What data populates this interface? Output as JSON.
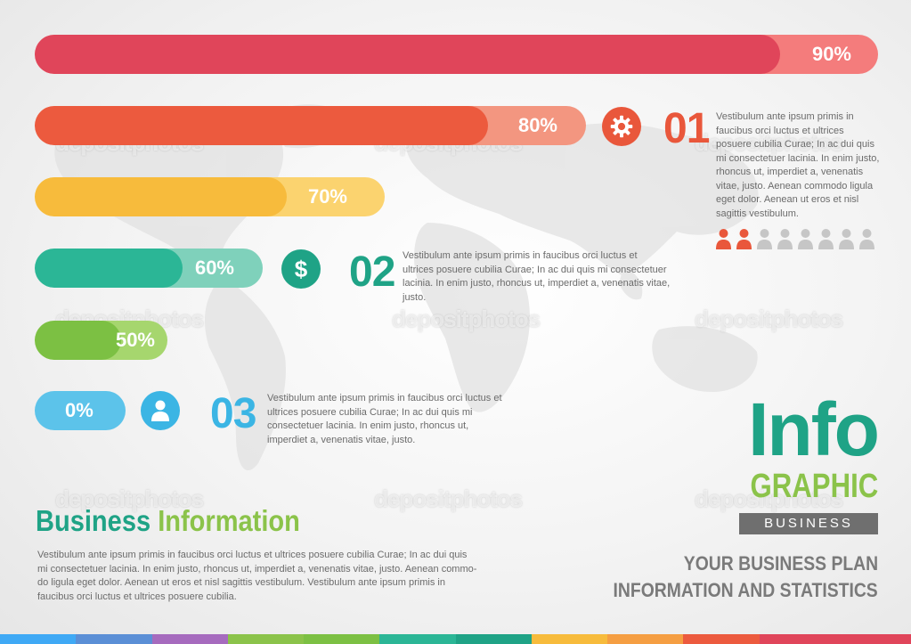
{
  "bars": [
    {
      "value": 90,
      "label": "90%",
      "track": "#f47c7c",
      "fill": "#e0455a"
    },
    {
      "value": 80,
      "label": "80%",
      "track": "#f39680",
      "fill": "#ec5a3e"
    },
    {
      "value": 70,
      "label": "70%",
      "track": "#fbd36f",
      "fill": "#f7bb3c"
    },
    {
      "value": 60,
      "label": "60%",
      "track": "#7fd1bb",
      "fill": "#2bb696"
    },
    {
      "value": 50,
      "label": "50%",
      "track": "#a6d66e",
      "fill": "#7cc043"
    },
    {
      "value": 0,
      "label": "0%",
      "track": "#5cc3ea",
      "fill": "#5cc3ea"
    }
  ],
  "items": [
    {
      "number": "01",
      "color": "#e9573b",
      "icon": "gear-icon",
      "text_lines": [
        "Vestibulum ante ipsum primis in",
        "faucibus orci luctus et ultrices",
        "posuere cubilia Curae; In ac dui quis",
        "mi consectetuer lacinia. In enim justo,",
        "rhoncus ut, imperdiet a, venenatis",
        "vitae, justo. Aenean commodo ligula",
        "eget dolor. Aenean ut eros et nisl",
        "sagittis vestibulum."
      ]
    },
    {
      "number": "02",
      "color": "#1fa386",
      "icon": "dollar-icon",
      "icon_glyph": "$",
      "text_lines": [
        "Vestibulum ante ipsum primis in faucibus orci luctus et",
        "ultrices posuere cubilia Curae; In ac dui quis mi consectetuer",
        "lacinia. In enim justo, rhoncus ut, imperdiet a, venenatis vitae,",
        "justo."
      ]
    },
    {
      "number": "03",
      "color": "#3bb5e4",
      "icon": "person-icon",
      "text_lines": [
        "Vestibulum ante ipsum primis in faucibus orci luctus et",
        "ultrices posuere cubilia Curae; In ac dui quis mi",
        "consectetuer lacinia. In enim justo, rhoncus ut,",
        "imperdiet a, venenatis vitae, justo."
      ]
    }
  ],
  "people": {
    "total": 8,
    "highlighted": 2,
    "highlight_color": "#e9573b",
    "base_color": "#c6c6c6"
  },
  "title": {
    "word1": "Business",
    "word2": "Information",
    "color1": "#1fa386",
    "color2": "#8bc34a"
  },
  "description_lines": [
    "Vestibulum ante ipsum primis in faucibus orci luctus et ultrices posuere cubilia Curae; In ac dui quis",
    "mi consectetuer lacinia. In enim justo, rhoncus ut, imperdiet a, venenatis vitae, justo. Aenean commo-",
    "do ligula eget dolor. Aenean ut eros et nisl sagittis vestibulum. Vestibulum ante ipsum primis in",
    "faucibus orci luctus et ultrices posuere cubilia."
  ],
  "brand": {
    "info": "Info",
    "graphic": "GRAPHIC",
    "business": "BUSINESS",
    "plan_line1": "YOUR BUSINESS PLAN",
    "plan_line2": "INFORMATION AND STATISTICS"
  },
  "watermark": "depositphotos",
  "stripe_colors": [
    "#3fa9f5",
    "#5b8fd6",
    "#a66bbe",
    "#8bc34a",
    "#7cc043",
    "#2bb696",
    "#1fa386",
    "#f7bb3c",
    "#f59e42",
    "#ec5a3e",
    "#e0455a",
    "#e0455a"
  ]
}
